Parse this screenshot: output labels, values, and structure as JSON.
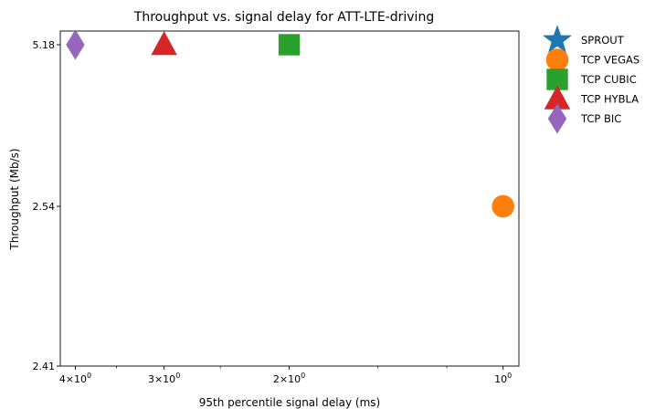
{
  "chart_data": {
    "type": "scatter",
    "title": "Throughput vs. signal delay for ATT-LTE-driving",
    "xlabel": "95th percentile signal delay (ms)",
    "ylabel": "Throughput (Mb/s)",
    "x_scale": "log",
    "x_inverted": true,
    "xlim": [
      4.2,
      0.95
    ],
    "y_ticks": [
      "5.18",
      "2.54",
      "2.41"
    ],
    "x_ticks": [
      {
        "value": 4,
        "label": "4×10",
        "exp": "0"
      },
      {
        "value": 3,
        "label": "3×10",
        "exp": "0"
      },
      {
        "value": 2,
        "label": "2×10",
        "exp": "0"
      },
      {
        "value": 1,
        "label": "10",
        "exp": "0"
      }
    ],
    "grid": false,
    "legend_position": "outside-top-right",
    "series": [
      {
        "name": "SPROUT",
        "marker": "star",
        "color": "#1f77b4",
        "points": []
      },
      {
        "name": "TCP VEGAS",
        "marker": "circle",
        "color": "#ff7f0e",
        "points": [
          {
            "x": 1,
            "y": "2.54"
          }
        ]
      },
      {
        "name": "TCP CUBIC",
        "marker": "square",
        "color": "#2ca02c",
        "points": [
          {
            "x": 2,
            "y": "5.18"
          }
        ]
      },
      {
        "name": "TCP HYBLA",
        "marker": "triangle",
        "color": "#d62728",
        "points": [
          {
            "x": 3,
            "y": "5.18"
          }
        ]
      },
      {
        "name": "TCP BIC",
        "marker": "diamond",
        "color": "#9467bd",
        "points": [
          {
            "x": 4,
            "y": "5.18"
          }
        ]
      }
    ]
  }
}
